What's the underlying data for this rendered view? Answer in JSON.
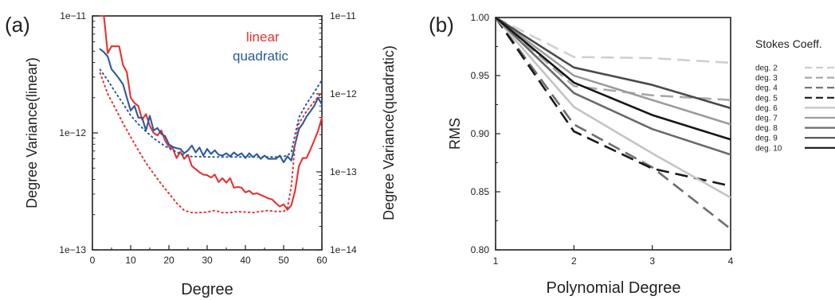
{
  "chart_data": [
    {
      "panel_label": "(a)",
      "type": "line",
      "xlabel": "Degree",
      "ylabel_left": "Degree Variance(linear)",
      "ylabel_right": "Degree Variance(quadratic)",
      "xlim": [
        0,
        60
      ],
      "xticks": [
        0,
        10,
        20,
        30,
        40,
        50,
        60
      ],
      "ylim_left": [
        1e-13,
        1e-11
      ],
      "ylim_right": [
        1e-14,
        1e-11
      ],
      "yscale": "log",
      "yticks_left": [
        "1e−11",
        "1e−12",
        "1e−13"
      ],
      "yticks_right": [
        "1e−11",
        "1e−12",
        "1e−13",
        "1e−14"
      ],
      "legend": [
        {
          "label": "linear",
          "color": "#e8312f"
        },
        {
          "label": "quadratic",
          "color": "#2c5a9e"
        }
      ],
      "legend_position": "top-right",
      "series": [
        {
          "name": "linear",
          "axis": "left",
          "style": "solid",
          "color": "#e8312f",
          "x": [
            2,
            3,
            4,
            5,
            6,
            7,
            8,
            9,
            10,
            11,
            12,
            13,
            14,
            15,
            16,
            17,
            18,
            19,
            20,
            21,
            22,
            23,
            24,
            25,
            26,
            27,
            28,
            29,
            30,
            31,
            32,
            33,
            34,
            35,
            36,
            37,
            38,
            39,
            40,
            41,
            42,
            43,
            44,
            45,
            46,
            47,
            48,
            49,
            50,
            51,
            52,
            53,
            54,
            55,
            56,
            57,
            58,
            59,
            60
          ],
          "y": [
            1.2e-11,
            1e-11,
            4.8e-12,
            5.5e-12,
            5.5e-12,
            5.5e-12,
            3.8e-12,
            3.3e-12,
            2e-12,
            1.8e-12,
            1.7e-12,
            1.3e-12,
            1.45e-12,
            1.15e-12,
            1e-12,
            9.5e-13,
            1.05e-12,
            8.6e-13,
            7.6e-13,
            7.4e-13,
            6.1e-13,
            6.9e-13,
            6e-13,
            6.5e-13,
            5.2e-13,
            4.9e-13,
            4.6e-13,
            4.4e-13,
            4.35e-13,
            4.15e-13,
            4.4e-13,
            3.8e-13,
            4.1e-13,
            3.75e-13,
            4.1e-13,
            3.4e-13,
            3.45e-13,
            3.4e-13,
            3.1e-13,
            3.2e-13,
            3e-13,
            3.05e-13,
            2.95e-13,
            2.85e-13,
            2.75e-13,
            2.7e-13,
            2.5e-13,
            2.35e-13,
            2.45e-13,
            2.2e-13,
            2.4e-13,
            3.2e-13,
            5.2e-13,
            6.1e-13,
            6.1e-13,
            7.2e-13,
            8.6e-13,
            1.04e-12,
            1.35e-12
          ]
        },
        {
          "name": "quadratic",
          "axis": "left",
          "style": "solid",
          "color": "#2c5a9e",
          "x": [
            2,
            3,
            4,
            5,
            6,
            7,
            8,
            9,
            10,
            11,
            12,
            13,
            14,
            15,
            16,
            17,
            18,
            19,
            20,
            21,
            22,
            23,
            24,
            25,
            26,
            27,
            28,
            29,
            30,
            31,
            32,
            33,
            34,
            35,
            36,
            37,
            38,
            39,
            40,
            41,
            42,
            43,
            44,
            45,
            46,
            47,
            48,
            49,
            50,
            51,
            52,
            53,
            54,
            55,
            56,
            57,
            58,
            59,
            60
          ],
          "y": [
            5.2e-12,
            4.9e-12,
            4.5e-12,
            3.5e-12,
            3.2e-12,
            2.9e-12,
            2.6e-12,
            2e-12,
            1.55e-12,
            1.7e-12,
            1.35e-12,
            1.35e-12,
            1.05e-12,
            1.4e-12,
            1.05e-12,
            1.1e-12,
            9.8e-13,
            9.4e-13,
            8e-13,
            7.6e-13,
            7.4e-13,
            7.3e-13,
            6.7e-13,
            7.1e-13,
            7.8e-13,
            6.8e-13,
            7.5e-13,
            6.4e-13,
            7.3e-13,
            6.6e-13,
            7.1e-13,
            6.5e-13,
            6.4e-13,
            6.7e-13,
            6.3e-13,
            6.8e-13,
            6.4e-13,
            6.7e-13,
            6.1e-13,
            6.7e-13,
            6.2e-13,
            6.6e-13,
            6e-13,
            6.4e-13,
            6e-13,
            6e-13,
            6e-13,
            6.4e-13,
            5.6e-13,
            6.3e-13,
            5.8e-13,
            8e-13,
            1.08e-12,
            1.2e-12,
            1.38e-12,
            1.53e-12,
            1.7e-12,
            2e-12,
            1.75e-12
          ]
        },
        {
          "name": "linear (dotted)",
          "axis": "right",
          "style": "dotted",
          "color": "#e8312f",
          "x": [
            2,
            4,
            6,
            8,
            10,
            12,
            14,
            16,
            18,
            20,
            22,
            24,
            26,
            28,
            30,
            32,
            34,
            36,
            38,
            40,
            42,
            44,
            46,
            48,
            50,
            51,
            52,
            53,
            54,
            56,
            58,
            60
          ],
          "y": [
            1.85e-12,
            1e-12,
            6.5e-13,
            4.2e-13,
            2.8e-13,
            1.9e-13,
            1.3e-13,
            9.5e-14,
            7e-14,
            5.3e-14,
            4e-14,
            3.2e-14,
            3e-14,
            3e-14,
            3.05e-14,
            3.2e-14,
            3e-14,
            3e-14,
            3.1e-14,
            3.05e-14,
            3e-14,
            3.1e-14,
            3.2e-14,
            3.1e-14,
            3.1e-14,
            3.5e-14,
            6.5e-14,
            2.3e-13,
            4.2e-13,
            6e-13,
            8e-13,
            1.05e-12
          ]
        },
        {
          "name": "quadratic (dotted)",
          "axis": "right",
          "style": "dotted",
          "color": "#2c5a9e",
          "x": [
            2,
            4,
            6,
            8,
            10,
            12,
            14,
            16,
            18,
            20,
            22,
            24,
            26,
            28,
            30,
            32,
            34,
            36,
            38,
            40,
            42,
            44,
            46,
            48,
            50,
            51,
            52,
            53,
            54,
            56,
            58,
            60
          ],
          "y": [
            2.05e-12,
            1.5e-12,
            1.05e-12,
            7.5e-13,
            5.3e-13,
            4.1e-13,
            3.3e-13,
            2.7e-13,
            2.3e-13,
            2e-13,
            1.8e-13,
            1.65e-13,
            1.57e-13,
            1.57e-13,
            1.55e-13,
            1.55e-13,
            1.55e-13,
            1.55e-13,
            1.55e-13,
            1.55e-13,
            1.55e-13,
            1.55e-13,
            1.55e-13,
            1.55e-13,
            1.58e-13,
            1.62e-13,
            1.8e-13,
            3e-13,
            5e-13,
            7.5e-13,
            1.05e-12,
            1.5e-12
          ]
        }
      ]
    },
    {
      "panel_label": "(b)",
      "type": "line",
      "xlabel": "Polynomial Degree",
      "ylabel": "RMS",
      "xlim": [
        1,
        4
      ],
      "xticks": [
        1,
        2,
        3,
        4
      ],
      "ylim": [
        0.8,
        1.0
      ],
      "yticks": [
        "0.80",
        "0.85",
        "0.90",
        "0.95",
        "1.00"
      ],
      "legend_title": "Stokes Coeff.",
      "legend_position": "right",
      "x": [
        1,
        2,
        3,
        4
      ],
      "series": [
        {
          "name": "deg. 2",
          "style": "dashed",
          "color": "#cfcfcf",
          "values": [
            1.0,
            0.966,
            0.965,
            0.961
          ]
        },
        {
          "name": "deg. 3",
          "style": "dashed",
          "color": "#a8a8a8",
          "values": [
            1.0,
            0.941,
            0.933,
            0.929
          ]
        },
        {
          "name": "deg. 4",
          "style": "dashed",
          "color": "#6e6e6e",
          "values": [
            1.0,
            0.908,
            0.871,
            0.818
          ]
        },
        {
          "name": "deg. 5",
          "style": "dashed",
          "color": "#1a1a1a",
          "values": [
            1.0,
            0.902,
            0.87,
            0.855
          ]
        },
        {
          "name": "deg. 6",
          "style": "solid",
          "color": "#c4c4c4",
          "values": [
            1.0,
            0.923,
            0.883,
            0.845
          ]
        },
        {
          "name": "deg. 7",
          "style": "solid",
          "color": "#9c9c9c",
          "values": [
            1.0,
            0.95,
            0.929,
            0.908
          ]
        },
        {
          "name": "deg. 8",
          "style": "solid",
          "color": "#6a6a6a",
          "values": [
            1.0,
            0.935,
            0.904,
            0.882
          ]
        },
        {
          "name": "deg. 9",
          "style": "solid",
          "color": "#4a4a4a",
          "values": [
            1.0,
            0.957,
            0.942,
            0.922
          ]
        },
        {
          "name": "deg. 10",
          "style": "solid",
          "color": "#161616",
          "values": [
            1.0,
            0.944,
            0.916,
            0.895
          ]
        }
      ]
    }
  ]
}
